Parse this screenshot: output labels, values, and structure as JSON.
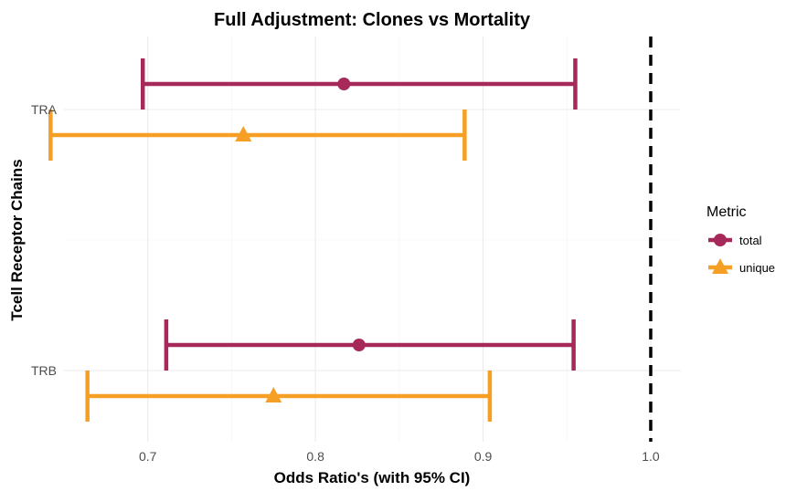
{
  "chart_data": {
    "type": "forest",
    "title": "Full Adjustment: Clones vs Mortality",
    "xlabel": "Odds Ratio's (with 95% CI)",
    "ylabel": "Tcell Receptor Chains",
    "xlim": [
      0.65,
      1.018
    ],
    "x_ticks": [
      "0.7",
      "0.8",
      "0.9",
      "1.0"
    ],
    "x_tick_values": [
      0.7,
      0.8,
      0.9,
      1.0
    ],
    "categories": [
      "TRA",
      "TRB"
    ],
    "reference_line": 1.0,
    "grid": true,
    "legend": {
      "title": "Metric",
      "placement": "right"
    },
    "series": [
      {
        "name": "total",
        "color": "#A6295A",
        "shape": "circle",
        "points": [
          {
            "category": "TRA",
            "estimate": 0.817,
            "lower": 0.697,
            "upper": 0.955
          },
          {
            "category": "TRB",
            "estimate": 0.826,
            "lower": 0.711,
            "upper": 0.954
          }
        ]
      },
      {
        "name": "unique",
        "color": "#F5A024",
        "shape": "triangle",
        "points": [
          {
            "category": "TRA",
            "estimate": 0.757,
            "lower": 0.642,
            "upper": 0.889
          },
          {
            "category": "TRB",
            "estimate": 0.775,
            "lower": 0.664,
            "upper": 0.904
          }
        ]
      }
    ]
  }
}
